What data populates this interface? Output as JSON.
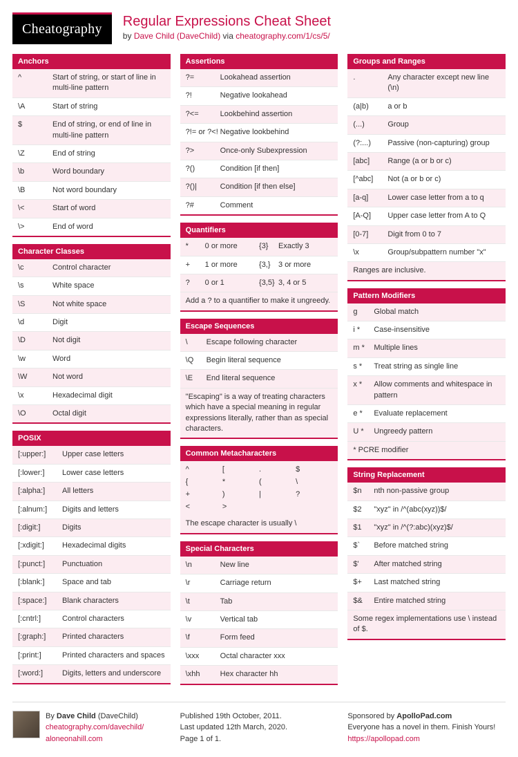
{
  "brand": "Cheatography",
  "title": "Regular Expressions Cheat Sheet",
  "by_prefix": "by ",
  "author_link": "Dave Child (DaveChild)",
  "via": " via ",
  "via_link": "cheatography.com/1/cs/5/",
  "colors": {
    "accent": "#c8114a",
    "stripe": "#fcecf1"
  },
  "col1": [
    {
      "title": "Anchors",
      "rows": [
        {
          "s": "^",
          "d": "Start of string, or start of line in multi-line pattern"
        },
        {
          "s": "\\A",
          "d": "Start of string"
        },
        {
          "s": "$",
          "d": "End of string, or end of line in multi-line pattern"
        },
        {
          "s": "\\Z",
          "d": "End of string"
        },
        {
          "s": "\\b",
          "d": "Word boundary"
        },
        {
          "s": "\\B",
          "d": "Not word boundary"
        },
        {
          "s": "\\<",
          "d": "Start of word"
        },
        {
          "s": "\\>",
          "d": "End of word"
        }
      ]
    },
    {
      "title": "Character Classes",
      "rows": [
        {
          "s": "\\c",
          "d": "Control character"
        },
        {
          "s": "\\s",
          "d": "White space"
        },
        {
          "s": "\\S",
          "d": "Not white space"
        },
        {
          "s": "\\d",
          "d": "Digit"
        },
        {
          "s": "\\D",
          "d": "Not digit"
        },
        {
          "s": "\\w",
          "d": "Word"
        },
        {
          "s": "\\W",
          "d": "Not word"
        },
        {
          "s": "\\x",
          "d": "Hexadecimal digit"
        },
        {
          "s": "\\O",
          "d": "Octal digit"
        }
      ]
    },
    {
      "title": "POSIX",
      "wide": true,
      "rows": [
        {
          "s": "[:upper:]",
          "d": "Upper case letters"
        },
        {
          "s": "[:lower:]",
          "d": "Lower case letters"
        },
        {
          "s": "[:alpha:]",
          "d": "All letters"
        },
        {
          "s": "[:alnum:]",
          "d": "Digits and letters"
        },
        {
          "s": "[:digit:]",
          "d": "Digits"
        },
        {
          "s": "[:xdigit:]",
          "d": "Hexadecimal digits"
        },
        {
          "s": "[:punct:]",
          "d": "Punctuation"
        },
        {
          "s": "[:blank:]",
          "d": "Space and tab"
        },
        {
          "s": "[:space:]",
          "d": "Blank characters"
        },
        {
          "s": "[:cntrl:]",
          "d": "Control characters"
        },
        {
          "s": "[:graph:]",
          "d": "Printed characters"
        },
        {
          "s": "[:print:]",
          "d": "Printed characters and spaces"
        },
        {
          "s": "[:word:]",
          "d": "Digits, letters and underscore"
        }
      ]
    }
  ],
  "col2": [
    {
      "title": "Assertions",
      "rows": [
        {
          "s": "?=",
          "d": "Lookahead assertion"
        },
        {
          "s": "?!",
          "d": "Negative lookahead"
        },
        {
          "s": "?<=",
          "d": "Lookbehind assertion"
        },
        {
          "s": "?!= or ?<!",
          "d": "Negative lookbehind"
        },
        {
          "s": "?>",
          "d": "Once-only Subexpression"
        },
        {
          "s": "?()",
          "d": "Condition [if then]"
        },
        {
          "s": "?()|",
          "d": "Condition [if then else]"
        },
        {
          "s": "?#",
          "d": "Comment"
        }
      ]
    },
    {
      "title": "Quantifiers",
      "quad": true,
      "rows": [
        {
          "a": "*",
          "b": "0 or more",
          "c": "{3}",
          "e": "Exactly 3"
        },
        {
          "a": "+",
          "b": "1 or more",
          "c": "{3,}",
          "e": "3 or more"
        },
        {
          "a": "?",
          "b": "0 or 1",
          "c": "{3,5}",
          "e": "3, 4 or 5"
        }
      ],
      "note": "Add a ? to a quantifier to make it ungreedy."
    },
    {
      "title": "Escape Sequences",
      "narrow": true,
      "rows": [
        {
          "s": "\\",
          "d": "Escape following character"
        },
        {
          "s": "\\Q",
          "d": "Begin literal sequence"
        },
        {
          "s": "\\E",
          "d": "End literal sequence"
        }
      ],
      "note": "\"Escaping\" is a way of treating characters which have a special meaning in regular expressions literally, rather than as special characters."
    },
    {
      "title": "Common Metacharacters",
      "meta": [
        "^",
        "[",
        ".",
        "$",
        "{",
        "*",
        "(",
        "\\",
        "+",
        ")",
        "|",
        "?",
        "<",
        ">"
      ],
      "note": "The escape character is usually \\"
    },
    {
      "title": "Special Characters",
      "rows": [
        {
          "s": "\\n",
          "d": "New line"
        },
        {
          "s": "\\r",
          "d": "Carriage return"
        },
        {
          "s": "\\t",
          "d": "Tab"
        },
        {
          "s": "\\v",
          "d": "Vertical tab"
        },
        {
          "s": "\\f",
          "d": "Form feed"
        },
        {
          "s": "\\xxx",
          "d": "Octal character xxx"
        },
        {
          "s": "\\xhh",
          "d": "Hex character hh"
        }
      ]
    }
  ],
  "col3": [
    {
      "title": "Groups and Ranges",
      "rows": [
        {
          "s": ".",
          "d": "Any character except new line (\\n)"
        },
        {
          "s": "(a|b)",
          "d": "a or b"
        },
        {
          "s": "(...)",
          "d": "Group"
        },
        {
          "s": "(?:...)",
          "d": "Passive (non-capturing) group"
        },
        {
          "s": "[abc]",
          "d": "Range (a or b or c)"
        },
        {
          "s": "[^abc]",
          "d": "Not (a or b or c)"
        },
        {
          "s": "[a-q]",
          "d": "Lower case letter from a to q"
        },
        {
          "s": "[A-Q]",
          "d": "Upper case letter from A to Q"
        },
        {
          "s": "[0-7]",
          "d": "Digit from 0 to 7"
        },
        {
          "s": "\\x",
          "d": "Group/subpattern number \"x\""
        }
      ],
      "note": "Ranges are inclusive."
    },
    {
      "title": "Pattern Modifiers",
      "narrow": true,
      "rows": [
        {
          "s": "g",
          "d": "Global match"
        },
        {
          "s": "i *",
          "d": "Case-insensitive"
        },
        {
          "s": "m *",
          "d": "Multiple lines"
        },
        {
          "s": "s *",
          "d": "Treat string as single line"
        },
        {
          "s": "x *",
          "d": "Allow comments and whitespace in pattern"
        },
        {
          "s": "e *",
          "d": "Evaluate replacement"
        },
        {
          "s": "U *",
          "d": "Ungreedy pattern"
        }
      ],
      "note": "* PCRE modifier"
    },
    {
      "title": "String Replacement",
      "narrow": true,
      "rows": [
        {
          "s": "$n",
          "d": "nth non-passive group"
        },
        {
          "s": "$2",
          "d": "\"xyz\" in /^(abc(xyz))$/"
        },
        {
          "s": "$1",
          "d": "\"xyz\" in /^(?:abc)(xyz)$/"
        },
        {
          "s": "$`",
          "d": "Before matched string"
        },
        {
          "s": "$'",
          "d": "After matched string"
        },
        {
          "s": "$+",
          "d": "Last matched string"
        },
        {
          "s": "$&",
          "d": "Entire matched string"
        }
      ],
      "note": "Some regex implementations use \\ instead of $."
    }
  ],
  "footer": {
    "left": {
      "by": "By ",
      "author": "Dave Child",
      "handle": " (DaveChild)",
      "link1": "cheatography.com/davechild/",
      "link2": "aloneonahill.com"
    },
    "mid": {
      "l1": "Published 19th October, 2011.",
      "l2": "Last updated 12th March, 2020.",
      "l3": "Page 1 of 1."
    },
    "right": {
      "l1a": "Sponsored by ",
      "l1b": "ApolloPad.com",
      "l2": "Everyone has a novel in them. Finish Yours!",
      "l3": "https://apollopad.com"
    }
  }
}
